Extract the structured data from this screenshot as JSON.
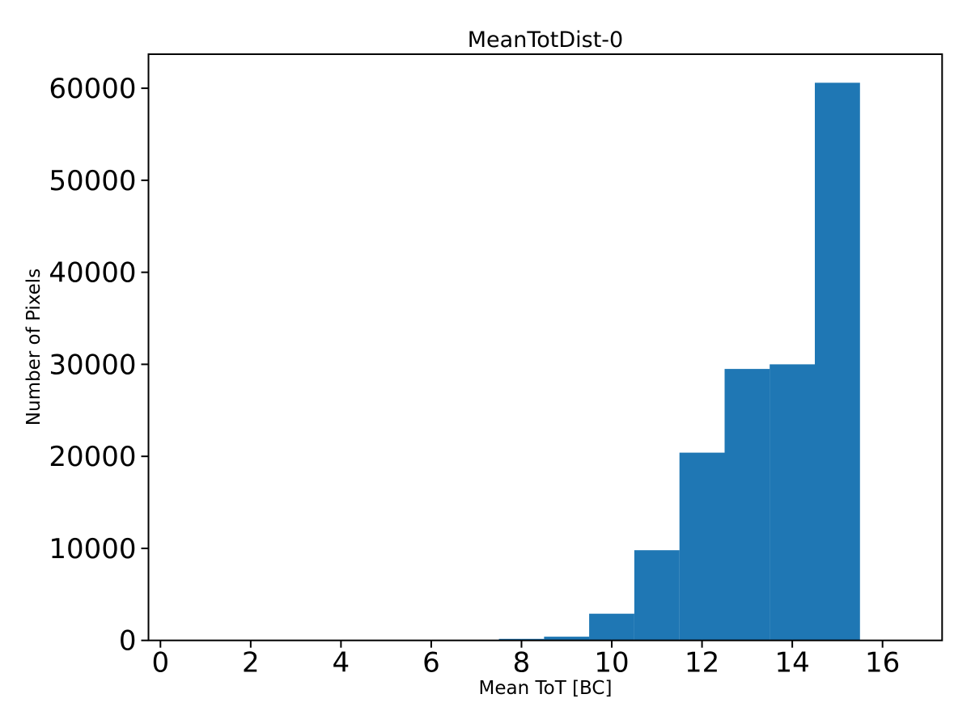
{
  "figure": {
    "title": "MeanTotDist-0",
    "xlabel": "Mean ToT [BC]",
    "ylabel": "Number of Pixels"
  },
  "chart_data": {
    "type": "bar",
    "subtype": "histogram",
    "title": "MeanTotDist-0",
    "xlabel": "Mean ToT [BC]",
    "ylabel": "Number of Pixels",
    "bar_color": "#1f77b4",
    "axis_color": "#000000",
    "background_color": "#ffffff",
    "grid": false,
    "legend_position": "none",
    "bin_width": 1,
    "bin_centers": [
      8,
      9,
      10,
      11,
      12,
      13,
      14,
      15
    ],
    "values": [
      170,
      400,
      2900,
      9800,
      20400,
      29500,
      30000,
      60600
    ],
    "xticks": [
      0,
      2,
      4,
      6,
      8,
      10,
      12,
      14,
      16
    ],
    "yticks": [
      0,
      10000,
      20000,
      30000,
      40000,
      50000,
      60000
    ],
    "xlim": [
      -0.265,
      17.32
    ],
    "ylim": [
      0,
      63700
    ]
  }
}
